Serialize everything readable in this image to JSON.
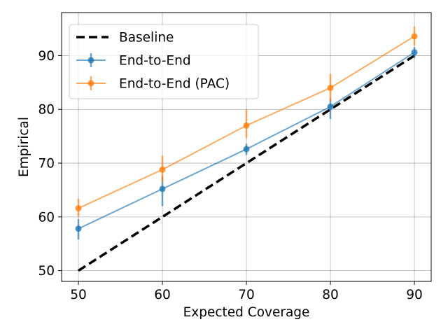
{
  "chart_data": {
    "type": "line",
    "xlabel": "Expected Coverage",
    "ylabel": "Empirical",
    "xlim": [
      48,
      92
    ],
    "ylim": [
      48,
      98
    ],
    "x_ticks": [
      50,
      60,
      70,
      80,
      90
    ],
    "y_ticks": [
      50,
      60,
      70,
      80,
      90
    ],
    "grid": true,
    "legend_position": "top-left",
    "series": [
      {
        "name": "Baseline",
        "style": "dashed",
        "color": "#000000",
        "markers": false,
        "x": [
          50,
          90
        ],
        "y": [
          50,
          90
        ]
      },
      {
        "name": "End-to-End",
        "style": "solid",
        "color": "#1f77b4",
        "markers": true,
        "x": [
          50,
          60,
          70,
          80,
          90
        ],
        "y": [
          57.8,
          65.2,
          72.6,
          80.5,
          90.6
        ],
        "err_low": [
          55.8,
          62.0,
          71.5,
          78.2,
          89.5
        ],
        "err_high": [
          59.6,
          67.6,
          73.6,
          82.0,
          91.6
        ]
      },
      {
        "name": "End-to-End (PAC)",
        "style": "solid",
        "color": "#ff7f0e",
        "markers": true,
        "x": [
          50,
          60,
          70,
          80,
          90
        ],
        "y": [
          61.6,
          68.8,
          77.0,
          84.0,
          93.6
        ],
        "err_low": [
          60.0,
          66.4,
          74.6,
          81.6,
          91.8
        ],
        "err_high": [
          63.4,
          71.4,
          80.0,
          86.6,
          95.4
        ]
      }
    ]
  }
}
